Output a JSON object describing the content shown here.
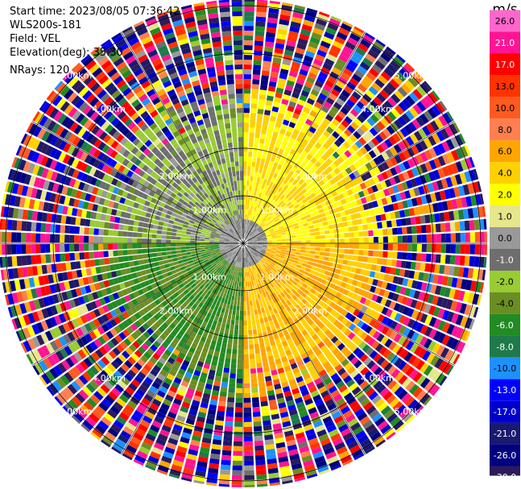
{
  "info": {
    "start_time": "Start time: 2023/08/05 07:36:42",
    "instrument": "WLS200s-181",
    "field": "Field: VEL",
    "elevation": "Elevation(deg): 35.30",
    "nrays": "NRays: 120"
  },
  "colorbar": {
    "unit": "m/s",
    "ticks": [
      "26.0",
      "21.0",
      "17.0",
      "13.0",
      "10.0",
      "8.0",
      "6.0",
      "4.0",
      "2.0",
      "1.0",
      "0.0",
      "-1.0",
      "-2.0",
      "-4.0",
      "-6.0",
      "-8.0",
      "-10.0",
      "-13.0",
      "-17.0",
      "-21.0",
      "-26.0",
      "-30.0"
    ],
    "colors": [
      "#ff66cc",
      "#ff1493",
      "#ff0000",
      "#ff3300",
      "#ff5a1f",
      "#ff7f50",
      "#ffa500",
      "#ffd000",
      "#ffff00",
      "#e6e68a",
      "#999999",
      "#6e6e6e",
      "#99cc33",
      "#6b8e23",
      "#228b22",
      "#1e7a4a",
      "#1e90ff",
      "#0000ff",
      "#0000cd",
      "#191970",
      "#000080",
      "#2b1a5c"
    ]
  },
  "chart_data": {
    "type": "ppi",
    "field": "VEL",
    "unit": "m/s",
    "n_rays": 120,
    "range_rings_km": [
      1.0,
      2.0,
      4.0,
      5.0
    ],
    "range_labels": [
      "1.00km",
      "2.00km",
      "4.00km",
      "5.00km"
    ],
    "spoke_angles_deg": [
      0,
      30,
      60,
      90,
      120,
      150,
      180,
      210,
      240,
      270,
      300,
      330
    ],
    "vmin": -30.0,
    "vmax": 30.0,
    "sectors": [
      {
        "azimuth_range": [
          0,
          90
        ],
        "near_range_value": 4.0,
        "description": "receding (yellow)"
      },
      {
        "azimuth_range": [
          90,
          180
        ],
        "near_range_value": 6.0,
        "description": "receding (orange)"
      },
      {
        "azimuth_range": [
          180,
          270
        ],
        "near_range_value": -4.0,
        "description": "approaching (green)"
      },
      {
        "azimuth_range": [
          270,
          360
        ],
        "near_range_value": -1.0,
        "description": "approaching (olive/grey)"
      }
    ]
  }
}
